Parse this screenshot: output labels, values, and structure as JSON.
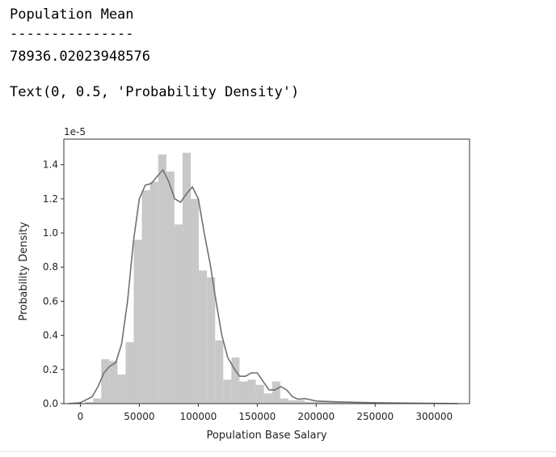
{
  "output": {
    "line1": "Population Mean",
    "line2": "---------------",
    "line3": "78936.02023948576",
    "line4": "Text(0, 0.5, 'Probability Density')"
  },
  "chart_data": {
    "type": "bar",
    "xlabel": "Population Base Salary",
    "ylabel": "Probability Density",
    "y_offset_text": "1e-5",
    "xlim": [
      -14000,
      330000
    ],
    "ylim": [
      0,
      1.55
    ],
    "xticks": [
      0,
      50000,
      100000,
      150000,
      200000,
      250000,
      300000
    ],
    "yticks": [
      0.0,
      0.2,
      0.4,
      0.6,
      0.8,
      1.0,
      1.2,
      1.4
    ],
    "xtick_labels": [
      "0",
      "50000",
      "100000",
      "150000",
      "200000",
      "250000",
      "300000"
    ],
    "ytick_labels": [
      "0.0",
      "0.2",
      "0.4",
      "0.6",
      "0.8",
      "1.0",
      "1.2",
      "1.4"
    ],
    "bin_width": 6900,
    "histogram_color": "#c8c8c8",
    "kde_color": "#707070",
    "bins_left": [
      -3000,
      3900,
      10800,
      17700,
      24600,
      31500,
      38400,
      45300,
      52200,
      59100,
      66000,
      72900,
      79800,
      86700,
      93600,
      100500,
      107400,
      114300,
      121200,
      128100,
      135000,
      141900,
      148800,
      155700,
      162600,
      169500,
      176400,
      183300,
      190200,
      197100,
      204000,
      210900,
      217800,
      224700,
      231600,
      238500,
      245400,
      252300,
      259200,
      266100,
      273000,
      279900,
      286800,
      293700,
      300600,
      307500
    ],
    "hist_values": [
      0.0,
      0.01,
      0.03,
      0.26,
      0.25,
      0.17,
      0.36,
      0.96,
      1.25,
      1.3,
      1.46,
      1.36,
      1.05,
      1.47,
      1.2,
      0.78,
      0.74,
      0.37,
      0.14,
      0.27,
      0.13,
      0.14,
      0.11,
      0.06,
      0.13,
      0.03,
      0.02,
      0.02,
      0.01,
      0.01,
      0.01,
      0.01,
      0.01,
      0.005,
      0.005,
      0.005,
      0.005,
      0.005,
      0.003,
      0.003,
      0.002,
      0.002,
      0.002,
      0.002,
      0.001,
      0.001
    ],
    "kde_x": [
      -10000,
      0,
      10000,
      15000,
      20000,
      25000,
      30000,
      35000,
      40000,
      45000,
      50000,
      55000,
      60000,
      65000,
      70000,
      75000,
      80000,
      85000,
      90000,
      95000,
      100000,
      105000,
      110000,
      115000,
      120000,
      125000,
      130000,
      135000,
      140000,
      145000,
      150000,
      155000,
      160000,
      165000,
      170000,
      175000,
      180000,
      185000,
      190000,
      200000,
      220000,
      250000,
      280000,
      310000,
      320000
    ],
    "kde_y": [
      0.0,
      0.005,
      0.04,
      0.1,
      0.18,
      0.22,
      0.24,
      0.35,
      0.6,
      0.95,
      1.2,
      1.28,
      1.29,
      1.33,
      1.37,
      1.3,
      1.2,
      1.18,
      1.23,
      1.27,
      1.2,
      1.0,
      0.82,
      0.6,
      0.4,
      0.27,
      0.21,
      0.16,
      0.16,
      0.18,
      0.18,
      0.13,
      0.08,
      0.08,
      0.1,
      0.08,
      0.04,
      0.025,
      0.03,
      0.015,
      0.01,
      0.005,
      0.003,
      0.001,
      0.0
    ]
  }
}
